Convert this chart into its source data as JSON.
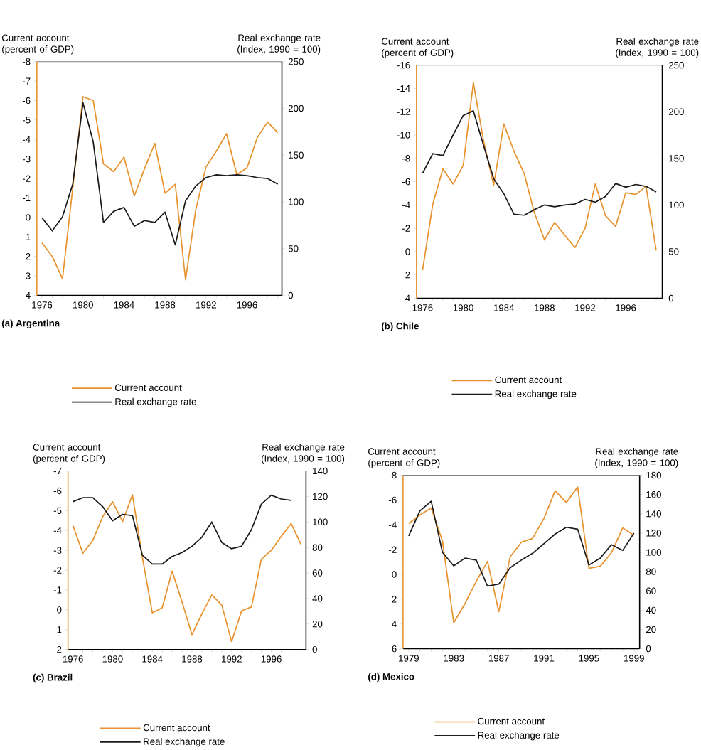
{
  "chart_data": [
    {
      "type": "line",
      "title": "(a) Argentina",
      "ylabel": "Current account (percent of GDP)",
      "y2label": "Real exchange rate (Index, 1990 = 100)",
      "legend": "bottom",
      "x": [
        1976,
        1977,
        1978,
        1979,
        1980,
        1981,
        1982,
        1983,
        1984,
        1985,
        1986,
        1987,
        1988,
        1989,
        1990,
        1991,
        1992,
        1993,
        1994,
        1995,
        1996,
        1997,
        1998,
        1999
      ],
      "xlim": [
        1975.5,
        1999.4
      ],
      "xticks": [
        1976,
        {
          "value": 1977,
          "label": null
        },
        {
          "value": 1978,
          "label": null
        },
        {
          "value": 1979,
          "label": null
        },
        1980,
        {
          "value": 1981,
          "label": null
        },
        {
          "value": 1982,
          "label": null
        },
        {
          "value": 1983,
          "label": null
        },
        1984,
        {
          "value": 1985,
          "label": null
        },
        {
          "value": 1986,
          "label": null
        },
        {
          "value": 1987,
          "label": null
        },
        1988,
        {
          "value": 1989,
          "label": null
        },
        {
          "value": 1990,
          "label": null
        },
        {
          "value": 1991,
          "label": null
        },
        1992,
        {
          "value": 1993,
          "label": null
        },
        {
          "value": 1994,
          "label": null
        },
        {
          "value": 1995,
          "label": null
        },
        1996,
        {
          "value": 1997,
          "label": null
        },
        {
          "value": 1998,
          "label": null
        },
        {
          "value": 1999,
          "label": null
        }
      ],
      "ylim": [
        4,
        -8
      ],
      "yticks": [
        -8,
        -7,
        -6,
        -5,
        -4,
        -3,
        -2,
        -1,
        0,
        1,
        2,
        3,
        4
      ],
      "y2lim": [
        0,
        250
      ],
      "y2ticks": [
        0,
        50,
        100,
        150,
        200,
        250
      ],
      "series": [
        {
          "name": "Current account",
          "color": "#e8922e",
          "values": [
            1.3,
            2.0,
            3.15,
            -1.5,
            -6.2,
            -6.0,
            -2.75,
            -2.35,
            -3.1,
            -1.1,
            -2.5,
            -3.8,
            -1.25,
            -1.7,
            3.2,
            -0.4,
            -2.6,
            -3.4,
            -4.3,
            -2.2,
            -2.55,
            -4.1,
            -4.9,
            -4.35
          ]
        },
        {
          "name": "Real exchange rate",
          "color": "#1a1a1a",
          "axis": "y2",
          "values": [
            83,
            69,
            84,
            119,
            206,
            164,
            78,
            90,
            94,
            74,
            80,
            78,
            89,
            54,
            101,
            117,
            126,
            129,
            128,
            129,
            128,
            126,
            125,
            119
          ]
        }
      ]
    },
    {
      "type": "line",
      "title": "(b) Chile",
      "ylabel": "Current account (percent of GDP)",
      "y2label": "Real exchange rate (Index, 1990 = 100)",
      "legend": "bottom",
      "x": [
        1976,
        1977,
        1978,
        1979,
        1980,
        1981,
        1982,
        1983,
        1984,
        1985,
        1986,
        1987,
        1988,
        1989,
        1990,
        1991,
        1992,
        1993,
        1994,
        1995,
        1996,
        1997,
        1998,
        1999
      ],
      "xlim": [
        1975.4,
        1999.6
      ],
      "xticks": [
        1976,
        {
          "value": 1977,
          "label": null
        },
        {
          "value": 1978,
          "label": null
        },
        {
          "value": 1979,
          "label": null
        },
        1980,
        {
          "value": 1981,
          "label": null
        },
        {
          "value": 1982,
          "label": null
        },
        {
          "value": 1983,
          "label": null
        },
        1984,
        {
          "value": 1985,
          "label": null
        },
        {
          "value": 1986,
          "label": null
        },
        {
          "value": 1987,
          "label": null
        },
        1988,
        {
          "value": 1989,
          "label": null
        },
        {
          "value": 1990,
          "label": null
        },
        {
          "value": 1991,
          "label": null
        },
        1992,
        {
          "value": 1993,
          "label": null
        },
        {
          "value": 1994,
          "label": null
        },
        {
          "value": 1995,
          "label": null
        },
        1996,
        {
          "value": 1997,
          "label": null
        },
        {
          "value": 1998,
          "label": null
        },
        {
          "value": 1999,
          "label": null
        }
      ],
      "ylim": [
        4,
        -16
      ],
      "yticks": [
        -16,
        -14,
        -12,
        -10,
        -8,
        -6,
        -4,
        -2,
        0,
        2,
        4
      ],
      "y2lim": [
        0,
        250
      ],
      "y2ticks": [
        0,
        50,
        100,
        150,
        200,
        250
      ],
      "series": [
        {
          "name": "Current account",
          "color": "#e8922e",
          "values": [
            1.6,
            -4.05,
            -7.1,
            -5.8,
            -7.4,
            -14.5,
            -9.5,
            -5.7,
            -10.95,
            -8.6,
            -6.7,
            -3.35,
            -1.0,
            -2.5,
            -1.4,
            -0.35,
            -2.0,
            -5.8,
            -3.1,
            -2.15,
            -5.05,
            -4.9,
            -5.6,
            -0.1
          ]
        },
        {
          "name": "Real exchange rate",
          "color": "#1a1a1a",
          "axis": "y2",
          "values": [
            134,
            155,
            153,
            175,
            196,
            201,
            164,
            128,
            112,
            90,
            89,
            95,
            100,
            98,
            100,
            101,
            106,
            103,
            109,
            123,
            119,
            122,
            120,
            114
          ]
        }
      ]
    },
    {
      "type": "line",
      "title": "(c) Brazil",
      "ylabel": "Current account (percent of GDP)",
      "y2label": "Real exchange rate (Index, 1990 = 100)",
      "legend": "bottom",
      "x": [
        1976,
        1977,
        1978,
        1979,
        1980,
        1981,
        1982,
        1983,
        1984,
        1985,
        1986,
        1987,
        1988,
        1989,
        1990,
        1991,
        1992,
        1993,
        1994,
        1995,
        1996,
        1997,
        1998,
        1999
      ],
      "xlim": [
        1975.5,
        1999.5
      ],
      "xticks": [
        1976,
        {
          "value": 1977,
          "label": null
        },
        {
          "value": 1978,
          "label": null
        },
        {
          "value": 1979,
          "label": null
        },
        1980,
        {
          "value": 1981,
          "label": null
        },
        {
          "value": 1982,
          "label": null
        },
        {
          "value": 1983,
          "label": null
        },
        1984,
        {
          "value": 1985,
          "label": null
        },
        {
          "value": 1986,
          "label": null
        },
        {
          "value": 1987,
          "label": null
        },
        1988,
        {
          "value": 1989,
          "label": null
        },
        {
          "value": 1990,
          "label": null
        },
        {
          "value": 1991,
          "label": null
        },
        1992,
        {
          "value": 1993,
          "label": null
        },
        {
          "value": 1994,
          "label": null
        },
        {
          "value": 1995,
          "label": null
        },
        1996,
        {
          "value": 1997,
          "label": null
        },
        {
          "value": 1998,
          "label": null
        },
        {
          "value": 1999,
          "label": null
        }
      ],
      "ylim": [
        2,
        -7
      ],
      "yticks": [
        -7,
        -6,
        -5,
        -4,
        -3,
        -2,
        -1,
        0,
        1,
        2
      ],
      "y2lim": [
        0,
        140
      ],
      "y2ticks": [
        0,
        20,
        40,
        60,
        80,
        100,
        120,
        140
      ],
      "series": [
        {
          "name": "Current account",
          "color": "#e8922e",
          "values": [
            -4.25,
            -2.85,
            -3.5,
            -4.7,
            -5.45,
            -4.45,
            -5.8,
            -2.65,
            0.15,
            -0.1,
            -1.95,
            -0.4,
            1.25,
            0.2,
            -0.75,
            -0.25,
            1.6,
            0.05,
            -0.15,
            -2.55,
            -3.0,
            -3.7,
            -4.35,
            -3.3
          ]
        },
        {
          "name": "Real exchange rate",
          "color": "#1a1a1a",
          "axis": "y2",
          "values": [
            116,
            119,
            119,
            112,
            101,
            106,
            105,
            74,
            67,
            67,
            73,
            76,
            81,
            88,
            100,
            84,
            79,
            81,
            94,
            114,
            121,
            118,
            117,
            null
          ]
        }
      ]
    },
    {
      "type": "line",
      "title": "(d) Mexico",
      "ylabel": "Current account (percent of GDP)",
      "y2label": "Real exchange rate (Index, 1990 = 100)",
      "legend": "bottom",
      "x": [
        1979,
        1980,
        1981,
        1982,
        1983,
        1984,
        1985,
        1986,
        1987,
        1988,
        1989,
        1990,
        1991,
        1992,
        1993,
        1994,
        1995,
        1996,
        1997,
        1998,
        1999
      ],
      "xlim": [
        1978.5,
        1999.5
      ],
      "xticks": [
        1979,
        {
          "value": 1980,
          "label": null
        },
        {
          "value": 1981,
          "label": null
        },
        {
          "value": 1982,
          "label": null
        },
        1983,
        {
          "value": 1984,
          "label": null
        },
        {
          "value": 1985,
          "label": null
        },
        {
          "value": 1986,
          "label": null
        },
        1987,
        {
          "value": 1988,
          "label": null
        },
        {
          "value": 1989,
          "label": null
        },
        {
          "value": 1990,
          "label": null
        },
        1991,
        {
          "value": 1992,
          "label": null
        },
        {
          "value": 1993,
          "label": null
        },
        {
          "value": 1994,
          "label": null
        },
        1995,
        {
          "value": 1996,
          "label": null
        },
        {
          "value": 1997,
          "label": null
        },
        {
          "value": 1998,
          "label": null
        },
        1999
      ],
      "ylim": [
        6,
        -8
      ],
      "yticks": [
        -8,
        -6,
        -4,
        -2,
        0,
        2,
        4,
        6
      ],
      "y2lim": [
        0,
        180
      ],
      "y2ticks": [
        0,
        20,
        40,
        60,
        80,
        100,
        120,
        140,
        160,
        180
      ],
      "series": [
        {
          "name": "Current account",
          "color": "#e8922e",
          "values": [
            -4.1,
            -4.8,
            -5.35,
            -2.7,
            3.9,
            2.35,
            0.55,
            -1.05,
            3.0,
            -1.4,
            -2.6,
            -2.9,
            -4.5,
            -6.75,
            -5.8,
            -7.05,
            -0.5,
            -0.65,
            -1.75,
            -3.75,
            -3.15
          ]
        },
        {
          "name": "Real exchange rate",
          "color": "#1a1a1a",
          "axis": "y2",
          "values": [
            117,
            143,
            153,
            100,
            86,
            94,
            92,
            65,
            67,
            84,
            92,
            99,
            109,
            119,
            126,
            124,
            87,
            94,
            108,
            102,
            120
          ]
        }
      ]
    }
  ]
}
